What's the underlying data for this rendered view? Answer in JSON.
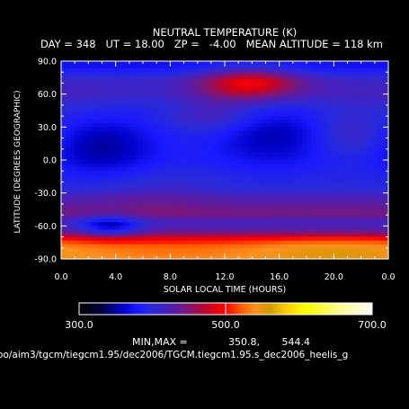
{
  "chart_data": {
    "type": "heatmap",
    "title": "NEUTRAL TEMPERATURE (K)",
    "subtitle": "DAY = 348   UT = 18.00   ZP =   -4.00   MEAN ALTITUDE = 118 km",
    "xlabel": "SOLAR LOCAL TIME (HOURS)",
    "ylabel": "LATITUDE (DEGREES GEOGRAPHIC)",
    "xlim": [
      0,
      24
    ],
    "ylim": [
      -90,
      90
    ],
    "xticks": [
      "0.0",
      "4.0",
      "8.0",
      "12.0",
      "16.0",
      "20.0",
      "0.0"
    ],
    "yticks": [
      "-90.0",
      "-60.0",
      "-30.0",
      "0.0",
      "30.0",
      "60.0",
      "90.0"
    ],
    "colorbar": {
      "range": [
        300,
        700
      ],
      "tick_labels": [
        "300.0",
        "500.0",
        "700.0"
      ],
      "colors": [
        {
          "value": 300,
          "color": "#000000"
        },
        {
          "value": 330,
          "color": "#000040"
        },
        {
          "value": 360,
          "color": "#0000c8"
        },
        {
          "value": 380,
          "color": "#1a1aff"
        },
        {
          "value": 400,
          "color": "#2a2ad8"
        },
        {
          "value": 420,
          "color": "#4a1fb8"
        },
        {
          "value": 440,
          "color": "#6a1a90"
        },
        {
          "value": 460,
          "color": "#9a0f55"
        },
        {
          "value": 480,
          "color": "#d00018"
        },
        {
          "value": 500,
          "color": "#ff0000"
        },
        {
          "value": 520,
          "color": "#ff5a00"
        },
        {
          "value": 540,
          "color": "#ff9020"
        },
        {
          "value": 560,
          "color": "#d09a00"
        },
        {
          "value": 585,
          "color": "#ffd200"
        },
        {
          "value": 610,
          "color": "#ffff00"
        },
        {
          "value": 650,
          "color": "#ffff80"
        },
        {
          "value": 700,
          "color": "#ffffff"
        }
      ]
    },
    "min_label": "MIN,MAX =",
    "min": "350.8,",
    "max": "544.4",
    "source": "oo/aim3/tgcm/tiegcm1.95/dec2006/TGCM.tiegcm1.95.s_dec2006_heelis_g",
    "field": {
      "background": 420,
      "base_by_latitude": [
        [
          -90,
          535
        ],
        [
          -80,
          525
        ],
        [
          -72,
          495
        ],
        [
          -66,
          440
        ],
        [
          -58,
          415
        ],
        [
          -48,
          445
        ],
        [
          -40,
          432
        ],
        [
          -25,
          400
        ],
        [
          0,
          390
        ],
        [
          25,
          392
        ],
        [
          45,
          402
        ],
        [
          60,
          418
        ],
        [
          72,
          412
        ],
        [
          84,
          375
        ],
        [
          90,
          372
        ]
      ],
      "features": [
        {
          "lt": 3.0,
          "lat": 12,
          "width_h": 2.8,
          "width_deg": 20,
          "delta": -40
        },
        {
          "lt": 15.5,
          "lat": 24,
          "width_h": 3.2,
          "width_deg": 21,
          "delta": -38
        },
        {
          "lt": 8.0,
          "lat": 50,
          "width_h": 2.8,
          "width_deg": 14,
          "delta": -12
        },
        {
          "lt": 3.6,
          "lat": -60,
          "width_h": 1.6,
          "width_deg": 7,
          "delta": -62
        },
        {
          "lt": 13.8,
          "lat": 70,
          "width_h": 2.6,
          "width_deg": 10,
          "delta": 85
        },
        {
          "lt": 11.0,
          "lat": 40,
          "width_h": 2.5,
          "width_deg": 12,
          "delta": 30
        },
        {
          "lt": 21.2,
          "lat": 22,
          "width_h": 2.0,
          "width_deg": 14,
          "delta": 28
        },
        {
          "lt": 20.0,
          "lat": -82,
          "width_h": 4.5,
          "width_deg": 9,
          "delta": 25
        },
        {
          "lt": 6.5,
          "lat": -30,
          "width_h": 3.0,
          "width_deg": 14,
          "delta": 12
        }
      ]
    }
  }
}
